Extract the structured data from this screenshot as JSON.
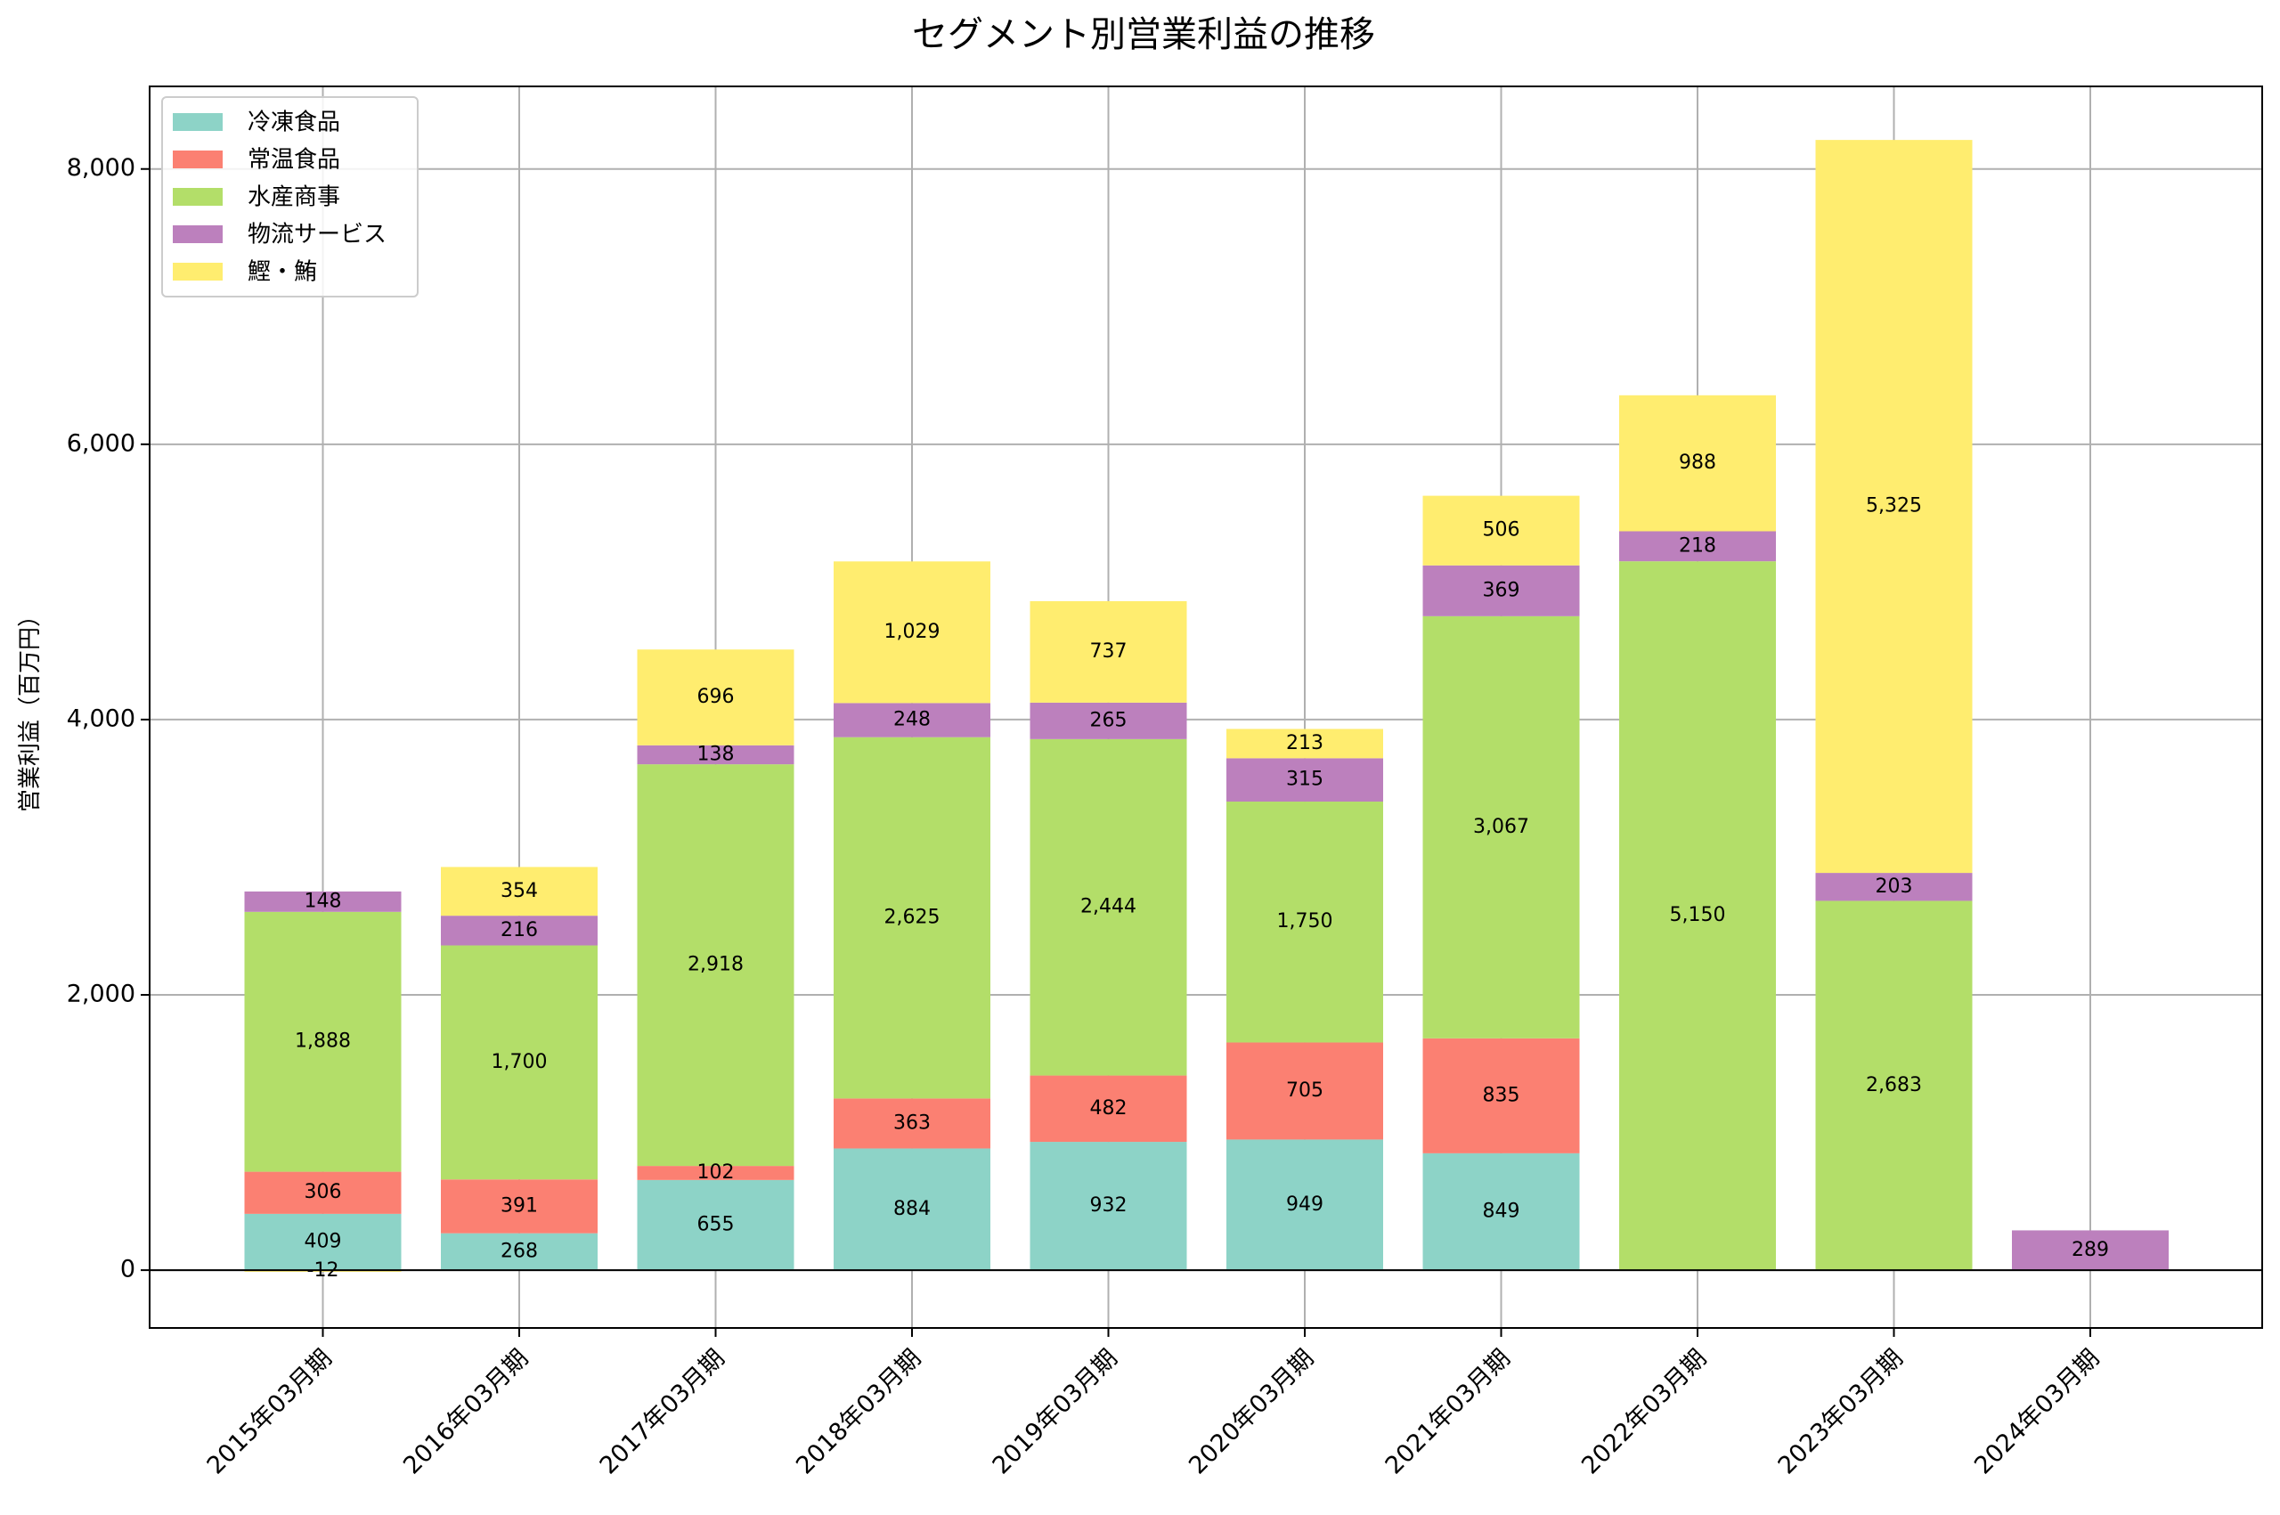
{
  "chart_data": {
    "type": "bar",
    "stacked": true,
    "title": "セグメント別営業利益の推移",
    "ylabel": "営業利益（百万円）",
    "xlabel": "",
    "ylim": [
      -420,
      8600
    ],
    "yticks": [
      0,
      2000,
      4000,
      6000,
      8000
    ],
    "ytick_labels": [
      "0",
      "2,000",
      "4,000",
      "6,000",
      "8,000"
    ],
    "grid": true,
    "legend_position": "top-left",
    "categories": [
      "2015年03月期",
      "2016年03月期",
      "2017年03月期",
      "2018年03月期",
      "2019年03月期",
      "2020年03月期",
      "2021年03月期",
      "2022年03月期",
      "2023年03月期",
      "2024年03月期"
    ],
    "series": [
      {
        "name": "冷凍食品",
        "color": "#8dd3c7",
        "values": [
          409,
          268,
          655,
          884,
          932,
          949,
          849,
          null,
          null,
          null
        ]
      },
      {
        "name": "常温食品",
        "color": "#fb8072",
        "values": [
          306,
          391,
          102,
          363,
          482,
          705,
          835,
          null,
          null,
          null
        ]
      },
      {
        "name": "水産商事",
        "color": "#b3de69",
        "values": [
          1888,
          1700,
          2918,
          2625,
          2444,
          1750,
          3067,
          5150,
          2683,
          null
        ]
      },
      {
        "name": "物流サービス",
        "color": "#bc80bd",
        "values": [
          148,
          216,
          138,
          248,
          265,
          315,
          369,
          218,
          203,
          289
        ]
      },
      {
        "name": "鰹・鮪",
        "color": "#ffed6f",
        "values": [
          -12,
          354,
          696,
          1029,
          737,
          213,
          506,
          988,
          5325,
          null
        ]
      }
    ]
  }
}
